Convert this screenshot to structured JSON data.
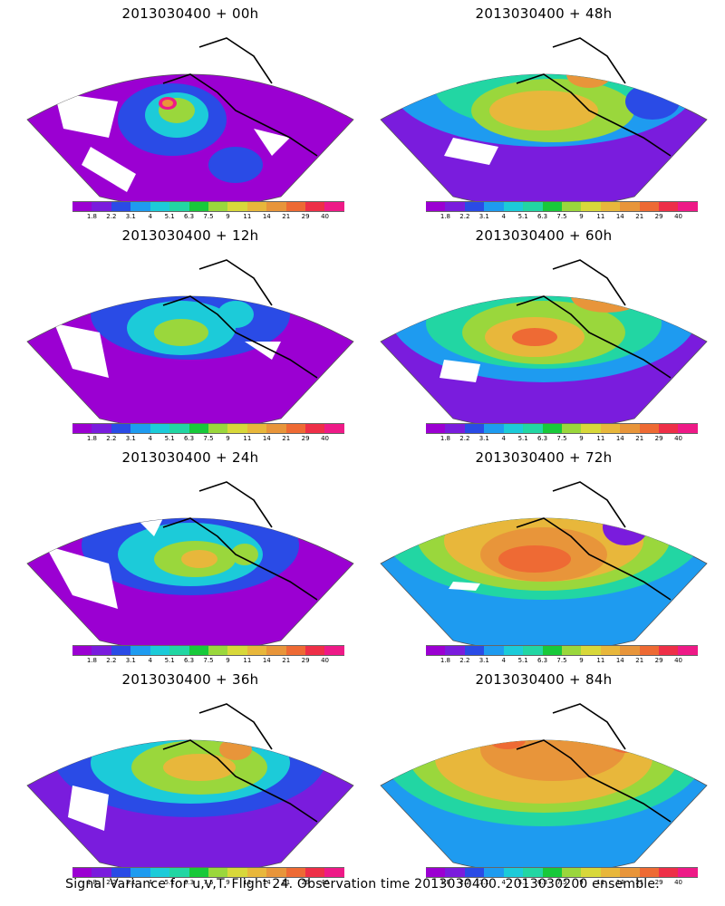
{
  "panels": [
    {
      "title": "2013030400 + 00h"
    },
    {
      "title": "2013030400 + 48h"
    },
    {
      "title": "2013030400 + 12h"
    },
    {
      "title": "2013030400 + 60h"
    },
    {
      "title": "2013030400 + 24h"
    },
    {
      "title": "2013030400 + 72h"
    },
    {
      "title": "2013030400 + 36h"
    },
    {
      "title": "2013030400 + 84h"
    }
  ],
  "legend": {
    "colors": [
      "#9b00d2",
      "#7a1cdd",
      "#2a4be6",
      "#1e9bf0",
      "#1ccbd9",
      "#22d6a3",
      "#18c93a",
      "#9ad73c",
      "#d8d83a",
      "#e8b73b",
      "#e8953a",
      "#ee6a34",
      "#ee2f48",
      "#ee1a87"
    ],
    "ticks": [
      "1.8",
      "2.2",
      "3.1",
      "4",
      "5.1",
      "6.3",
      "7.5",
      "9",
      "11",
      "14",
      "21",
      "29",
      "40"
    ]
  },
  "footer": "Signal Variance for u,v,T. Flight 24. Observation time 2013030400. 2013030200 ensemble."
}
